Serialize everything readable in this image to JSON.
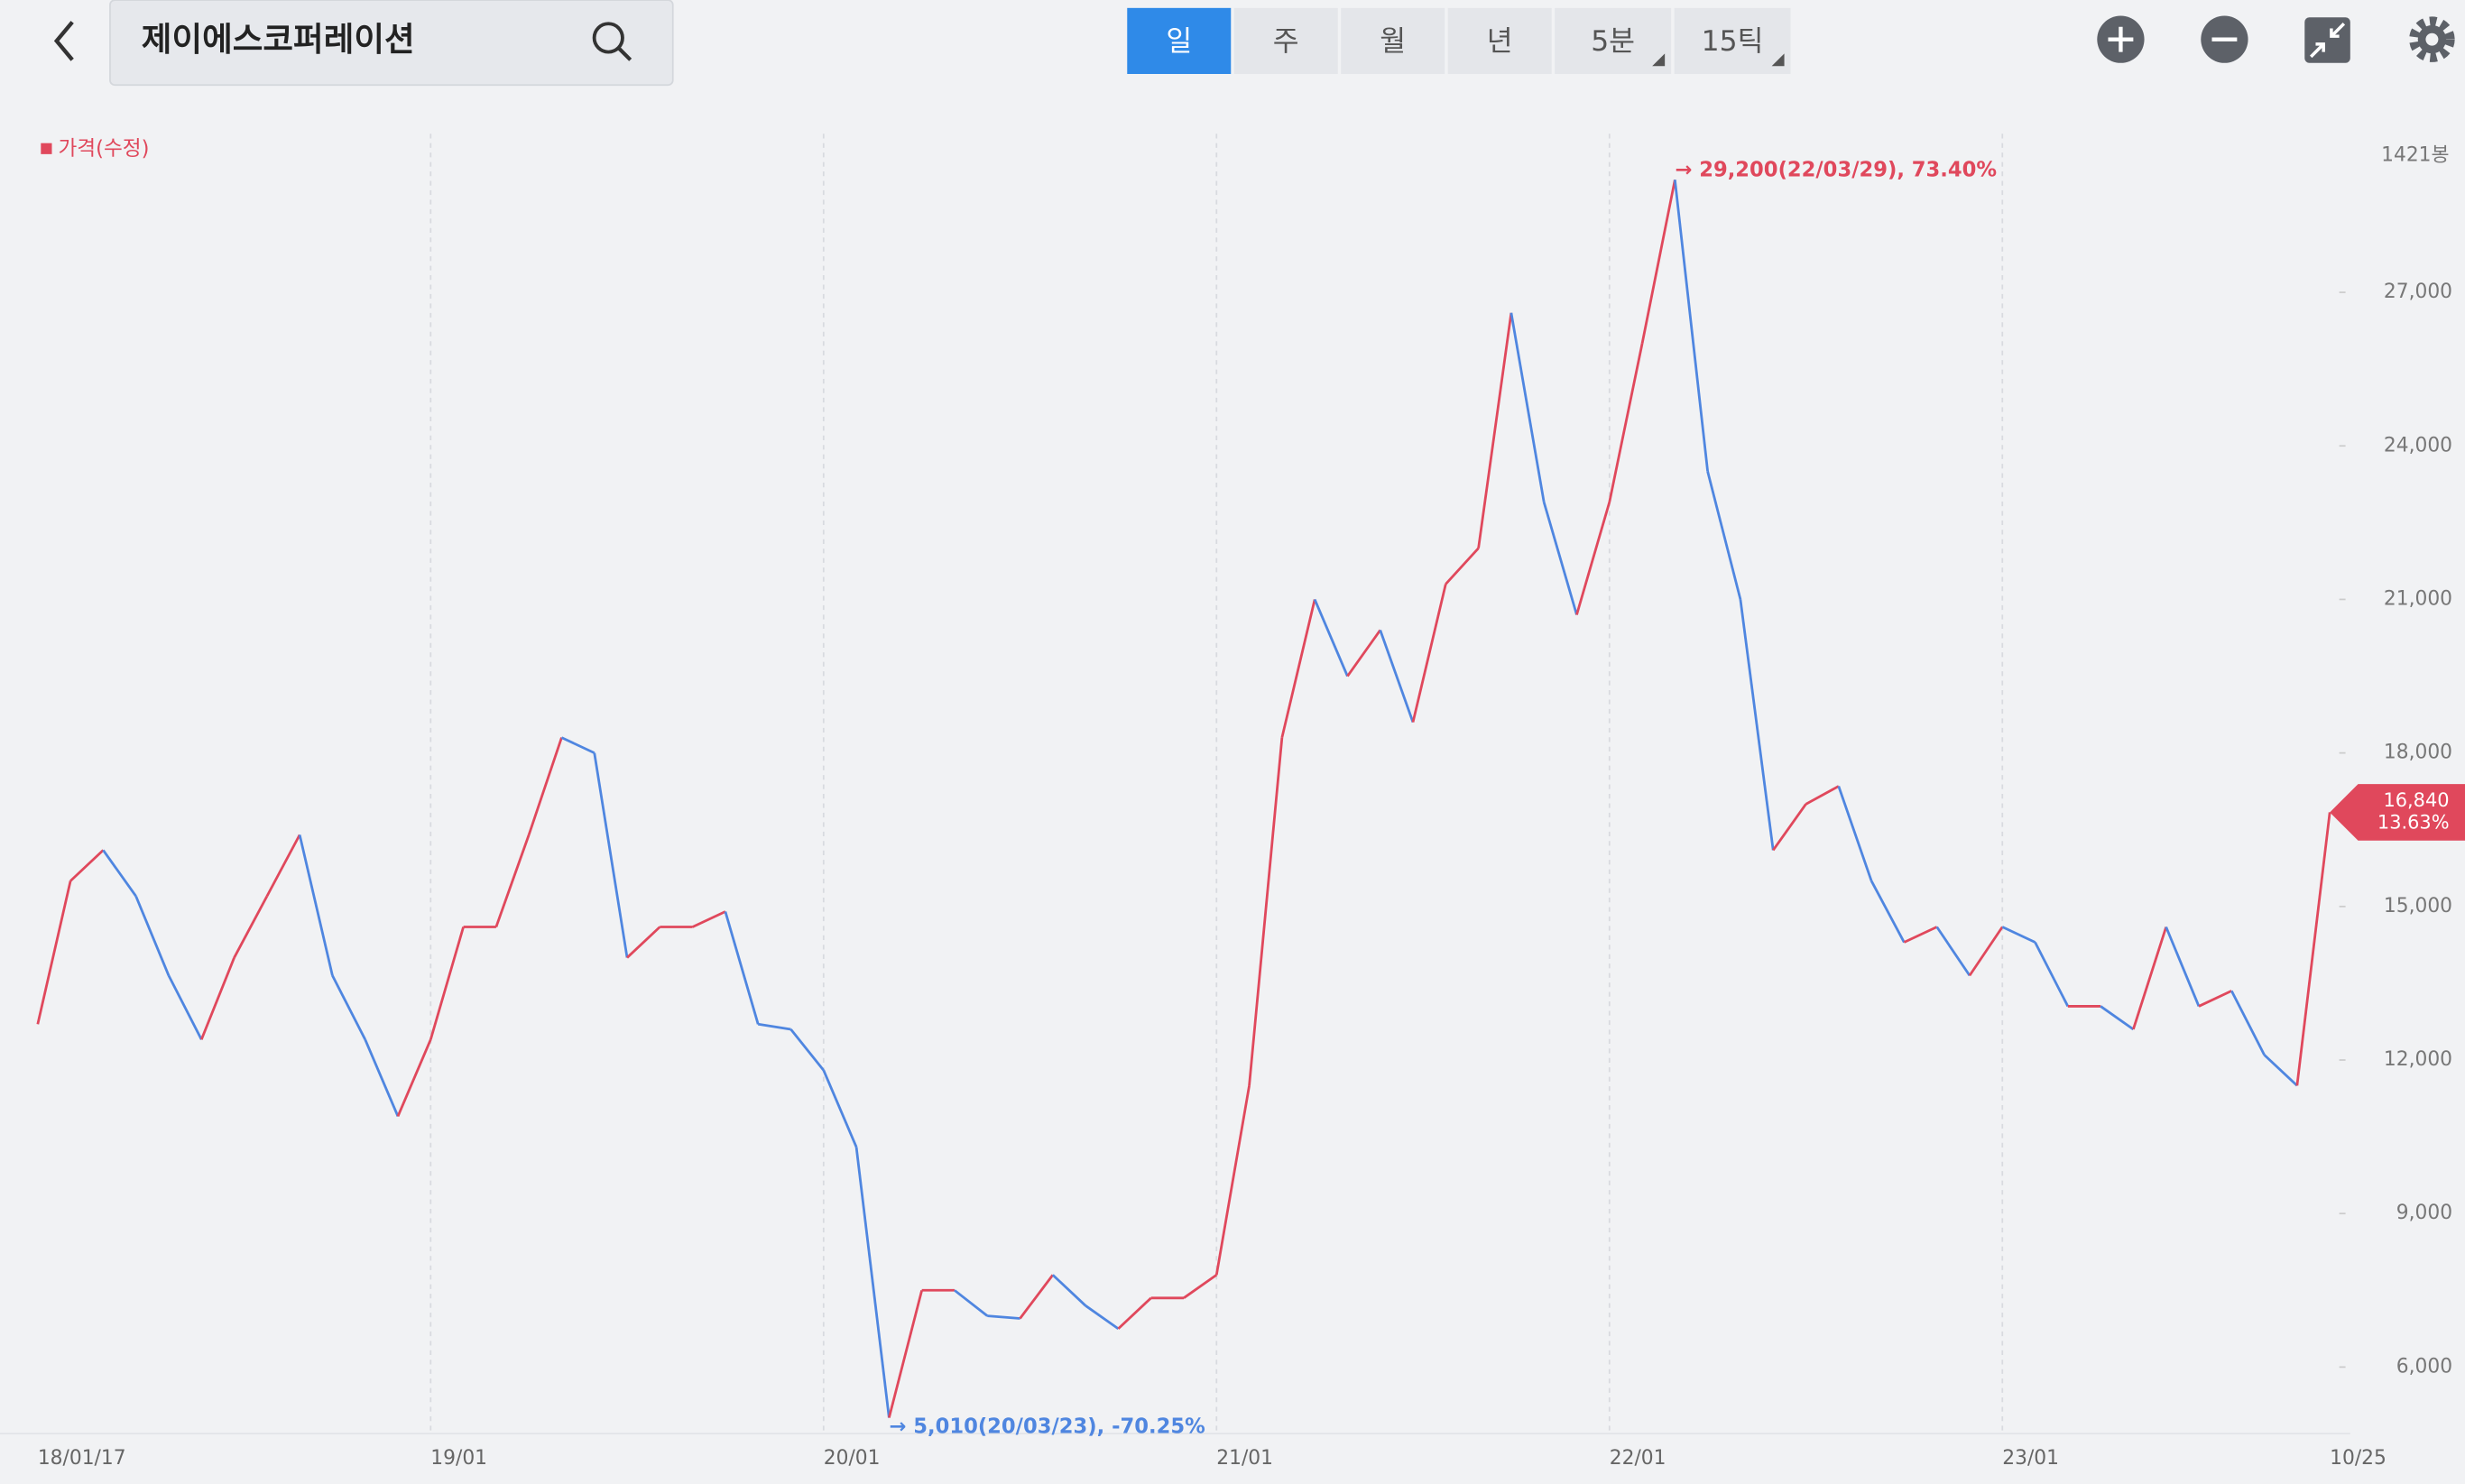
{
  "header": {
    "title": "제이에스코퍼레이션",
    "tabs": [
      "일",
      "주",
      "월",
      "년",
      "5분",
      "15틱"
    ],
    "active_tab": 0
  },
  "chart_data": {
    "type": "line",
    "series": [
      {
        "name": "가격(수정)",
        "color": "#e0485c",
        "down_color": "#4f86e0",
        "values": [
          12700,
          15500,
          16100,
          15200,
          13650,
          12400,
          14000,
          15200,
          16400,
          13650,
          12400,
          10900,
          12400,
          14600,
          14600,
          16400,
          18300,
          18000,
          14000,
          14600,
          14600,
          14900,
          12700,
          12600,
          11800,
          10300,
          5010,
          7500,
          7500,
          7000,
          6950,
          7800,
          7200,
          6750,
          7350,
          7350,
          7800,
          11500,
          18300,
          21000,
          19500,
          20400,
          18600,
          21300,
          22000,
          26600,
          22900,
          20700,
          22900,
          26000,
          29200,
          23500,
          21000,
          16100,
          17000,
          17350,
          15500,
          14300,
          14600,
          13650,
          14600,
          14300,
          13050,
          13050,
          12600,
          14600,
          13050,
          13350,
          12100,
          11500,
          16840
        ]
      }
    ],
    "categories": [
      "18/01/17",
      null,
      null,
      null,
      null,
      null,
      null,
      null,
      null,
      null,
      null,
      null,
      "19/01",
      null,
      null,
      null,
      null,
      null,
      null,
      null,
      null,
      null,
      null,
      null,
      "20/01",
      null,
      null,
      null,
      null,
      null,
      null,
      null,
      null,
      null,
      null,
      null,
      "21/01",
      null,
      null,
      null,
      null,
      null,
      null,
      null,
      null,
      null,
      null,
      null,
      "22/01",
      null,
      null,
      null,
      null,
      null,
      null,
      null,
      null,
      null,
      null,
      null,
      "23/01",
      null,
      null,
      null,
      null,
      null,
      null,
      null,
      null,
      null,
      "10/25"
    ],
    "ylim": [
      4700,
      30100
    ],
    "yticks": [
      {
        "value": 6000,
        "label": "6,000"
      },
      {
        "value": 9000,
        "label": "9,000"
      },
      {
        "value": 12000,
        "label": "12,000"
      },
      {
        "value": 15000,
        "label": "15,000"
      },
      {
        "value": 18000,
        "label": "18,000"
      },
      {
        "value": 21000,
        "label": "21,000"
      },
      {
        "value": 24000,
        "label": "24,000"
      },
      {
        "value": 27000,
        "label": "27,000"
      }
    ],
    "xgrid": true,
    "count_label": "1421봉",
    "max_annotation": "→ 29,200(22/03/29), 73.40%",
    "min_annotation": "→ 5,010(20/03/23), -70.25%",
    "current_price": {
      "value": 16840,
      "label": "16,840"
    },
    "current_change": {
      "value": 13.63,
      "label": "13.63%"
    }
  }
}
